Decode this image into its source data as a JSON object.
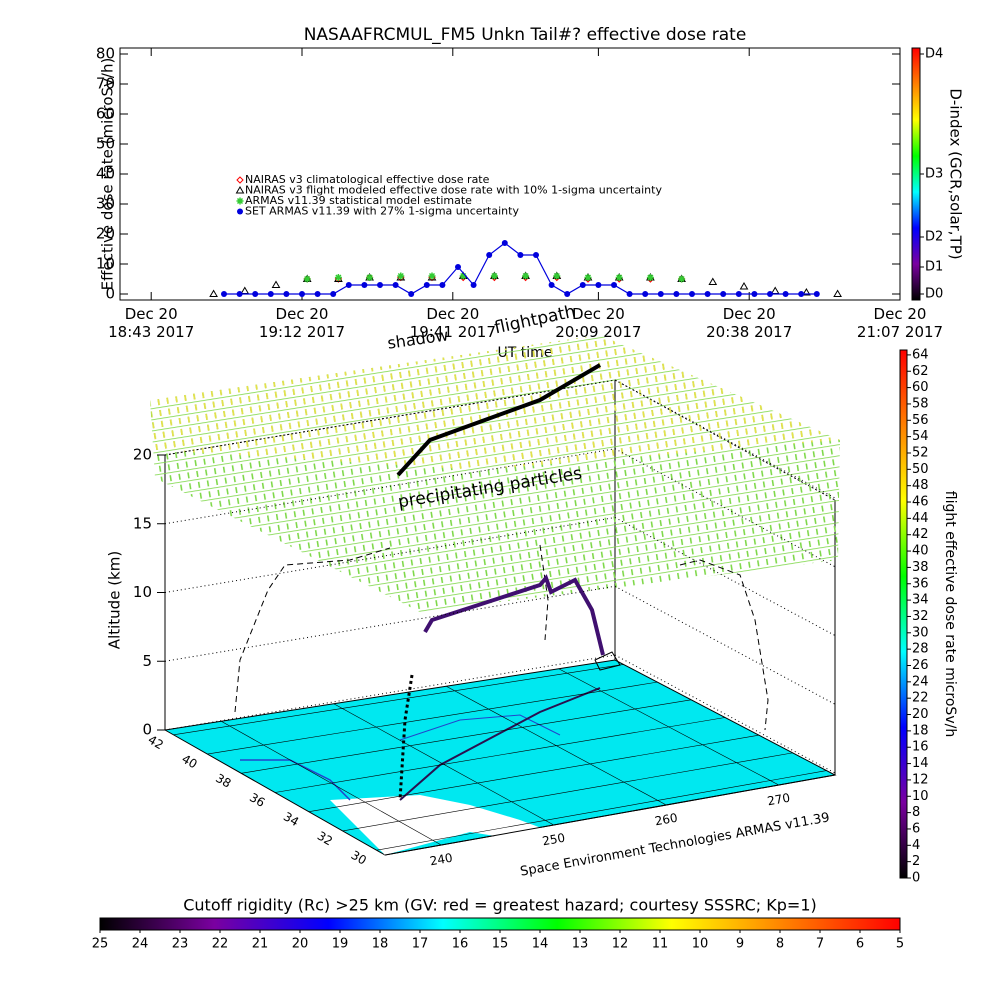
{
  "chart_data": [
    {
      "type": "timeseries",
      "title": "NASAAFRCMUL_FM5 Unkn Tail#? effective dose rate",
      "ylabel": "Effective dose rate (microSv/h)",
      "xlabel": "UT time",
      "xlim": [
        "2017-12-20 18:37",
        "2017-12-20 21:07"
      ],
      "xticks": [
        {
          "value": "2017-12-20 18:43",
          "label": "Dec 20\n18:43 2017"
        },
        {
          "value": "2017-12-20 19:12",
          "label": "Dec 20\n19:12 2017"
        },
        {
          "value": "2017-12-20 19:41",
          "label": "Dec 20\n19:41 2017"
        },
        {
          "value": "2017-12-20 20:09",
          "label": "Dec 20\n20:09 2017"
        },
        {
          "value": "2017-12-20 20:38",
          "label": "Dec 20\n20:38 2017"
        },
        {
          "value": "2017-12-20 21:07",
          "label": "Dec 20\n21:07 2017"
        }
      ],
      "ylim": [
        -2,
        82
      ],
      "yticks": [
        0,
        10,
        20,
        30,
        40,
        50,
        60,
        70,
        80
      ],
      "series": [
        {
          "name": "NAIRAS v3 climatological effective dose rate",
          "color": "#ff0000",
          "marker": "diamond",
          "x": [
            "2017-12-20 19:13",
            "2017-12-20 19:19",
            "2017-12-20 19:25",
            "2017-12-20 19:31",
            "2017-12-20 19:37",
            "2017-12-20 19:43",
            "2017-12-20 19:49",
            "2017-12-20 19:55",
            "2017-12-20 20:01",
            "2017-12-20 20:07",
            "2017-12-20 20:13",
            "2017-12-20 20:19",
            "2017-12-20 20:25"
          ],
          "values": [
            5,
            5,
            5.5,
            5.5,
            5.5,
            5.5,
            5.5,
            5.5,
            5.5,
            5,
            5,
            5,
            5
          ]
        },
        {
          "name": "NAIRAS v3 flight modeled effective dose rate with 10% 1-sigma uncertainty",
          "color": "#000000",
          "marker": "triangle",
          "x": [
            "2017-12-20 18:55",
            "2017-12-20 19:01",
            "2017-12-20 19:07",
            "2017-12-20 19:13",
            "2017-12-20 19:19",
            "2017-12-20 19:25",
            "2017-12-20 19:31",
            "2017-12-20 19:37",
            "2017-12-20 19:43",
            "2017-12-20 19:49",
            "2017-12-20 19:55",
            "2017-12-20 20:01",
            "2017-12-20 20:07",
            "2017-12-20 20:13",
            "2017-12-20 20:19",
            "2017-12-20 20:25",
            "2017-12-20 20:31",
            "2017-12-20 20:37",
            "2017-12-20 20:43",
            "2017-12-20 20:49",
            "2017-12-20 20:55"
          ],
          "values": [
            0,
            1,
            3,
            5,
            5,
            5.5,
            5.5,
            5.5,
            6,
            6,
            6,
            6,
            5.5,
            5.5,
            5.5,
            5,
            4,
            2.5,
            1,
            0.5,
            0
          ]
        },
        {
          "name": "ARMAS v11.39 statistical model estimate",
          "color": "#33cc33",
          "marker": "asterisk",
          "x": [
            "2017-12-20 19:13",
            "2017-12-20 19:19",
            "2017-12-20 19:25",
            "2017-12-20 19:31",
            "2017-12-20 19:37",
            "2017-12-20 19:43",
            "2017-12-20 19:49",
            "2017-12-20 19:55",
            "2017-12-20 20:01",
            "2017-12-20 20:07",
            "2017-12-20 20:13",
            "2017-12-20 20:19",
            "2017-12-20 20:25"
          ],
          "values": [
            5,
            5.5,
            5.5,
            6,
            6,
            6,
            6,
            6,
            6,
            5.5,
            5.5,
            5.5,
            5
          ]
        },
        {
          "name": "SET ARMAS v11.39 with 27% 1-sigma uncertainty",
          "color": "#0000dd",
          "marker": "circle",
          "line": true,
          "x": [
            "2017-12-20 18:57",
            "2017-12-20 19:00",
            "2017-12-20 19:03",
            "2017-12-20 19:06",
            "2017-12-20 19:09",
            "2017-12-20 19:12",
            "2017-12-20 19:15",
            "2017-12-20 19:18",
            "2017-12-20 19:21",
            "2017-12-20 19:24",
            "2017-12-20 19:27",
            "2017-12-20 19:30",
            "2017-12-20 19:33",
            "2017-12-20 19:36",
            "2017-12-20 19:39",
            "2017-12-20 19:42",
            "2017-12-20 19:45",
            "2017-12-20 19:48",
            "2017-12-20 19:51",
            "2017-12-20 19:54",
            "2017-12-20 19:57",
            "2017-12-20 20:00",
            "2017-12-20 20:03",
            "2017-12-20 20:06",
            "2017-12-20 20:09",
            "2017-12-20 20:12",
            "2017-12-20 20:15",
            "2017-12-20 20:18",
            "2017-12-20 20:21",
            "2017-12-20 20:24",
            "2017-12-20 20:27",
            "2017-12-20 20:30",
            "2017-12-20 20:33",
            "2017-12-20 20:36",
            "2017-12-20 20:39",
            "2017-12-20 20:42",
            "2017-12-20 20:45",
            "2017-12-20 20:48",
            "2017-12-20 20:51"
          ],
          "values": [
            0,
            0,
            0,
            0,
            0,
            0,
            0,
            0,
            3,
            3,
            3,
            3,
            0,
            3,
            3,
            9,
            3,
            13,
            17,
            13,
            13,
            3,
            0,
            3,
            3,
            3,
            0,
            0,
            0,
            0,
            0,
            0,
            0,
            0,
            0,
            0,
            0,
            0,
            0
          ]
        }
      ]
    },
    {
      "type": "colorbar",
      "orientation": "vertical",
      "label": "D-index (GCR,solar,TP)",
      "colors": [
        "#000000",
        "#7a00a0",
        "#0000ff",
        "#00ffff",
        "#00ff00",
        "#ffff00",
        "#ff8000",
        "#ff0000"
      ],
      "ylim": [
        -2,
        82
      ],
      "yticks": [
        {
          "value": 0,
          "label": "D0"
        },
        {
          "value": 9,
          "label": "D1"
        },
        {
          "value": 19,
          "label": "D2"
        },
        {
          "value": 40,
          "label": "D3"
        },
        {
          "value": 80,
          "label": "D4"
        }
      ]
    },
    {
      "type": "surface3d",
      "zlabel": "Altitude (km)",
      "zlim": [
        0,
        20
      ],
      "zticks": [
        0,
        5,
        10,
        15,
        20
      ],
      "ylim": [
        29.5,
        42.5
      ],
      "yticks": [
        30,
        32,
        34,
        36,
        38,
        40,
        42
      ],
      "xlim": [
        235,
        275
      ],
      "xticks": [
        240,
        250,
        260,
        270
      ],
      "annotations": [
        "shadow",
        "flightpath",
        "precipitating particles",
        "Space Environment Technologies ARMAS v11.39"
      ]
    },
    {
      "type": "colorbar",
      "orientation": "vertical",
      "label": "flight effective dose rate microSv/h",
      "colors": [
        "#000000",
        "#7a00a0",
        "#0000ff",
        "#00ffff",
        "#00ff00",
        "#ffff00",
        "#ff8000",
        "#ff0000"
      ],
      "ylim": [
        0,
        64.6
      ],
      "yticks": [
        0,
        2,
        4,
        6,
        8,
        10,
        12,
        14,
        16,
        18,
        20,
        22,
        24,
        26,
        28,
        30,
        32,
        34,
        36,
        38,
        40,
        42,
        44,
        46,
        48,
        50,
        52,
        54,
        56,
        58,
        60,
        62,
        64
      ]
    },
    {
      "type": "colorbar",
      "orientation": "horizontal",
      "title": "Cutoff rigidity (Rc) >25 km (GV: red = greatest hazard; courtesy SSSRC; Kp=1)",
      "colors": [
        "#000000",
        "#7a00a0",
        "#0000ff",
        "#00ffff",
        "#00ff00",
        "#ffff00",
        "#ff8000",
        "#ff0000"
      ],
      "xlim": [
        25,
        5
      ],
      "xticks": [
        25,
        24,
        23,
        22,
        21,
        20,
        19,
        18,
        17,
        16,
        15,
        14,
        13,
        12,
        11,
        10,
        9,
        8,
        7,
        6,
        5
      ]
    }
  ]
}
